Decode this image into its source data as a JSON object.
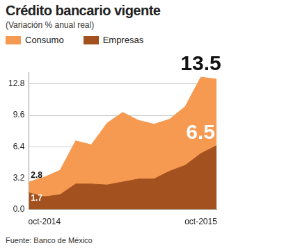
{
  "chart_data": {
    "type": "area",
    "title": "Crédito bancario vigente",
    "subtitle": "(Variación % anual real)",
    "source": "Fuente: Banco de México",
    "categories": [
      null,
      "oct-2014",
      null,
      null,
      null,
      null,
      null,
      null,
      null,
      null,
      null,
      "oct-2015",
      null
    ],
    "series": [
      {
        "name": "Consumo",
        "color": "#f59a50",
        "values": [
          2.8,
          3.3,
          4.0,
          7.0,
          6.6,
          8.8,
          9.9,
          9.1,
          8.7,
          9.2,
          10.5,
          13.5,
          13.3
        ]
      },
      {
        "name": "Empresas",
        "color": "#a3521f",
        "values": [
          1.7,
          1.3,
          1.5,
          2.6,
          2.6,
          2.5,
          2.8,
          3.1,
          3.1,
          3.9,
          4.5,
          5.7,
          6.5
        ]
      }
    ],
    "annotations": [
      {
        "series": "Consumo",
        "index": 0,
        "value": 2.8,
        "text": "2.8"
      },
      {
        "series": "Empresas",
        "index": 0,
        "value": 1.7,
        "text": "1.7"
      },
      {
        "series": "Consumo",
        "index": 11,
        "value": 13.5,
        "text": "13.5"
      },
      {
        "series": "Empresas",
        "index": 12,
        "value": 6.5,
        "text": "6.5"
      }
    ],
    "ylim": [
      0,
      14
    ],
    "yticks": [
      {
        "value": 0,
        "label": "0.0"
      },
      3.2,
      6.4,
      9.6,
      12.8
    ],
    "grid": true,
    "stacked": false
  }
}
